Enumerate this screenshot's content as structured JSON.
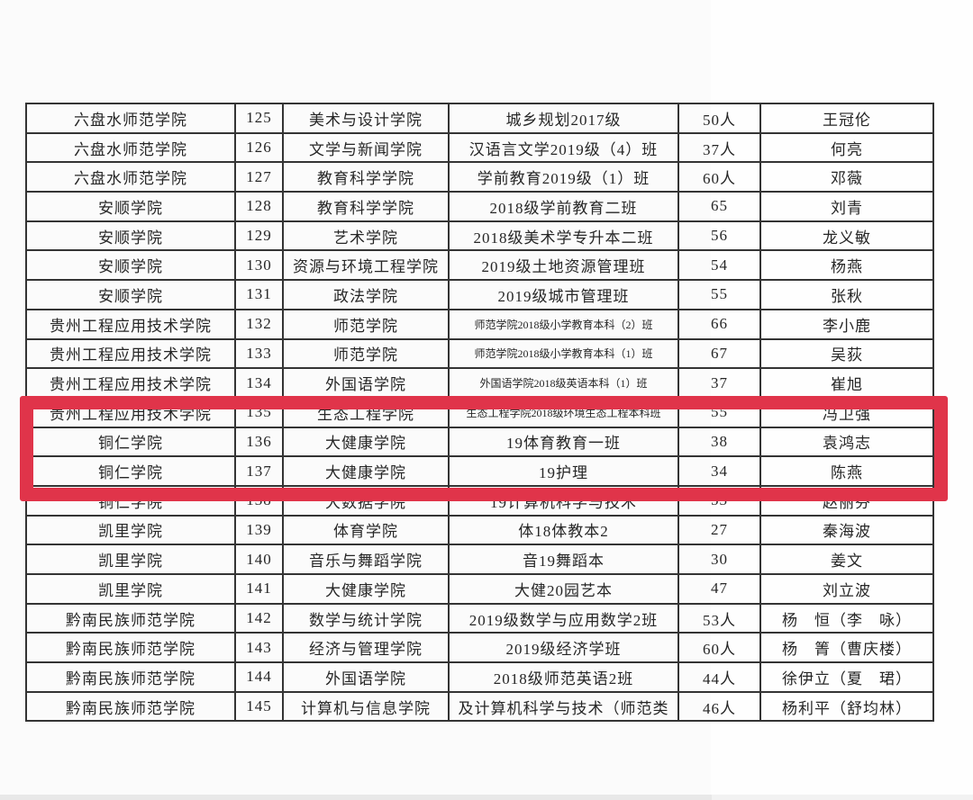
{
  "annotation": {
    "highlight_color": "#e0344a",
    "highlighted_row_numbers": [
      "136",
      "137",
      "138"
    ]
  },
  "table": {
    "line_color": "#343434",
    "column_keys": [
      "school",
      "no",
      "college",
      "class_name",
      "count",
      "name"
    ],
    "rows": [
      {
        "school": "六盘水师范学院",
        "no": "125",
        "college": "美术与设计学院",
        "class_name": "城乡规划2017级",
        "count": "50人",
        "name": "王冠伦",
        "class_small": false
      },
      {
        "school": "六盘水师范学院",
        "no": "126",
        "college": "文学与新闻学院",
        "class_name": "汉语言文学2019级（4）班",
        "count": "37人",
        "name": "何亮",
        "class_small": false
      },
      {
        "school": "六盘水师范学院",
        "no": "127",
        "college": "教育科学学院",
        "class_name": "学前教育2019级（1）班",
        "count": "60人",
        "name": "邓薇",
        "class_small": false
      },
      {
        "school": "安顺学院",
        "no": "128",
        "college": "教育科学学院",
        "class_name": "2018级学前教育二班",
        "count": "65",
        "name": "刘青",
        "class_small": false
      },
      {
        "school": "安顺学院",
        "no": "129",
        "college": "艺术学院",
        "class_name": "2018级美术学专升本二班",
        "count": "56",
        "name": "龙义敏",
        "class_small": false
      },
      {
        "school": "安顺学院",
        "no": "130",
        "college": "资源与环境工程学院",
        "class_name": "2019级土地资源管理班",
        "count": "54",
        "name": "杨燕",
        "class_small": false
      },
      {
        "school": "安顺学院",
        "no": "131",
        "college": "政法学院",
        "class_name": "2019级城市管理班",
        "count": "55",
        "name": "张秋",
        "class_small": false
      },
      {
        "school": "贵州工程应用技术学院",
        "no": "132",
        "college": "师范学院",
        "class_name": "师范学院2018级小学教育本科（2）班",
        "count": "66",
        "name": "李小鹿",
        "class_small": true
      },
      {
        "school": "贵州工程应用技术学院",
        "no": "133",
        "college": "师范学院",
        "class_name": "师范学院2018级小学教育本科（1）班",
        "count": "67",
        "name": "吴荻",
        "class_small": true
      },
      {
        "school": "贵州工程应用技术学院",
        "no": "134",
        "college": "外国语学院",
        "class_name": "外国语学院2018级英语本科（1）班",
        "count": "37",
        "name": "崔旭",
        "class_small": true
      },
      {
        "school": "贵州工程应用技术学院",
        "no": "135",
        "college": "生态工程学院",
        "class_name": "生态工程学院2018级环境生态工程本科班",
        "count": "55",
        "name": "冯卫强",
        "class_small": true
      },
      {
        "school": "铜仁学院",
        "no": "136",
        "college": "大健康学院",
        "class_name": "19体育教育一班",
        "count": "38",
        "name": "袁鸿志",
        "class_small": false
      },
      {
        "school": "铜仁学院",
        "no": "137",
        "college": "大健康学院",
        "class_name": "19护理",
        "count": "34",
        "name": "陈燕",
        "class_small": false
      },
      {
        "school": "铜仁学院",
        "no": "138",
        "college": "大数据学院",
        "class_name": "19计算机科学与技术",
        "count": "53",
        "name": "赵丽芬",
        "class_small": false
      },
      {
        "school": "凯里学院",
        "no": "139",
        "college": "体育学院",
        "class_name": "体18体教本2",
        "count": "27",
        "name": "秦海波",
        "class_small": false
      },
      {
        "school": "凯里学院",
        "no": "140",
        "college": "音乐与舞蹈学院",
        "class_name": "音19舞蹈本",
        "count": "30",
        "name": "姜文",
        "class_small": false
      },
      {
        "school": "凯里学院",
        "no": "141",
        "college": "大健康学院",
        "class_name": "大健20园艺本",
        "count": "47",
        "name": "刘立波",
        "class_small": false
      },
      {
        "school": "黔南民族师范学院",
        "no": "142",
        "college": "数学与统计学院",
        "class_name": "2019级数学与应用数学2班",
        "count": "53人",
        "name": "杨　恒（李　咏）",
        "class_small": false
      },
      {
        "school": "黔南民族师范学院",
        "no": "143",
        "college": "经济与管理学院",
        "class_name": "2019级经济学班",
        "count": "60人",
        "name": "杨　箐（曹庆楼）",
        "class_small": false
      },
      {
        "school": "黔南民族师范学院",
        "no": "144",
        "college": "外国语学院",
        "class_name": "2018级师范英语2班",
        "count": "44人",
        "name": "徐伊立（夏　珺）",
        "class_small": false
      },
      {
        "school": "黔南民族师范学院",
        "no": "145",
        "college": "计算机与信息学院",
        "class_name": "及计算机科学与技术（师范类",
        "count": "46人",
        "name": "杨利平（舒均林）",
        "class_small": false
      }
    ]
  }
}
